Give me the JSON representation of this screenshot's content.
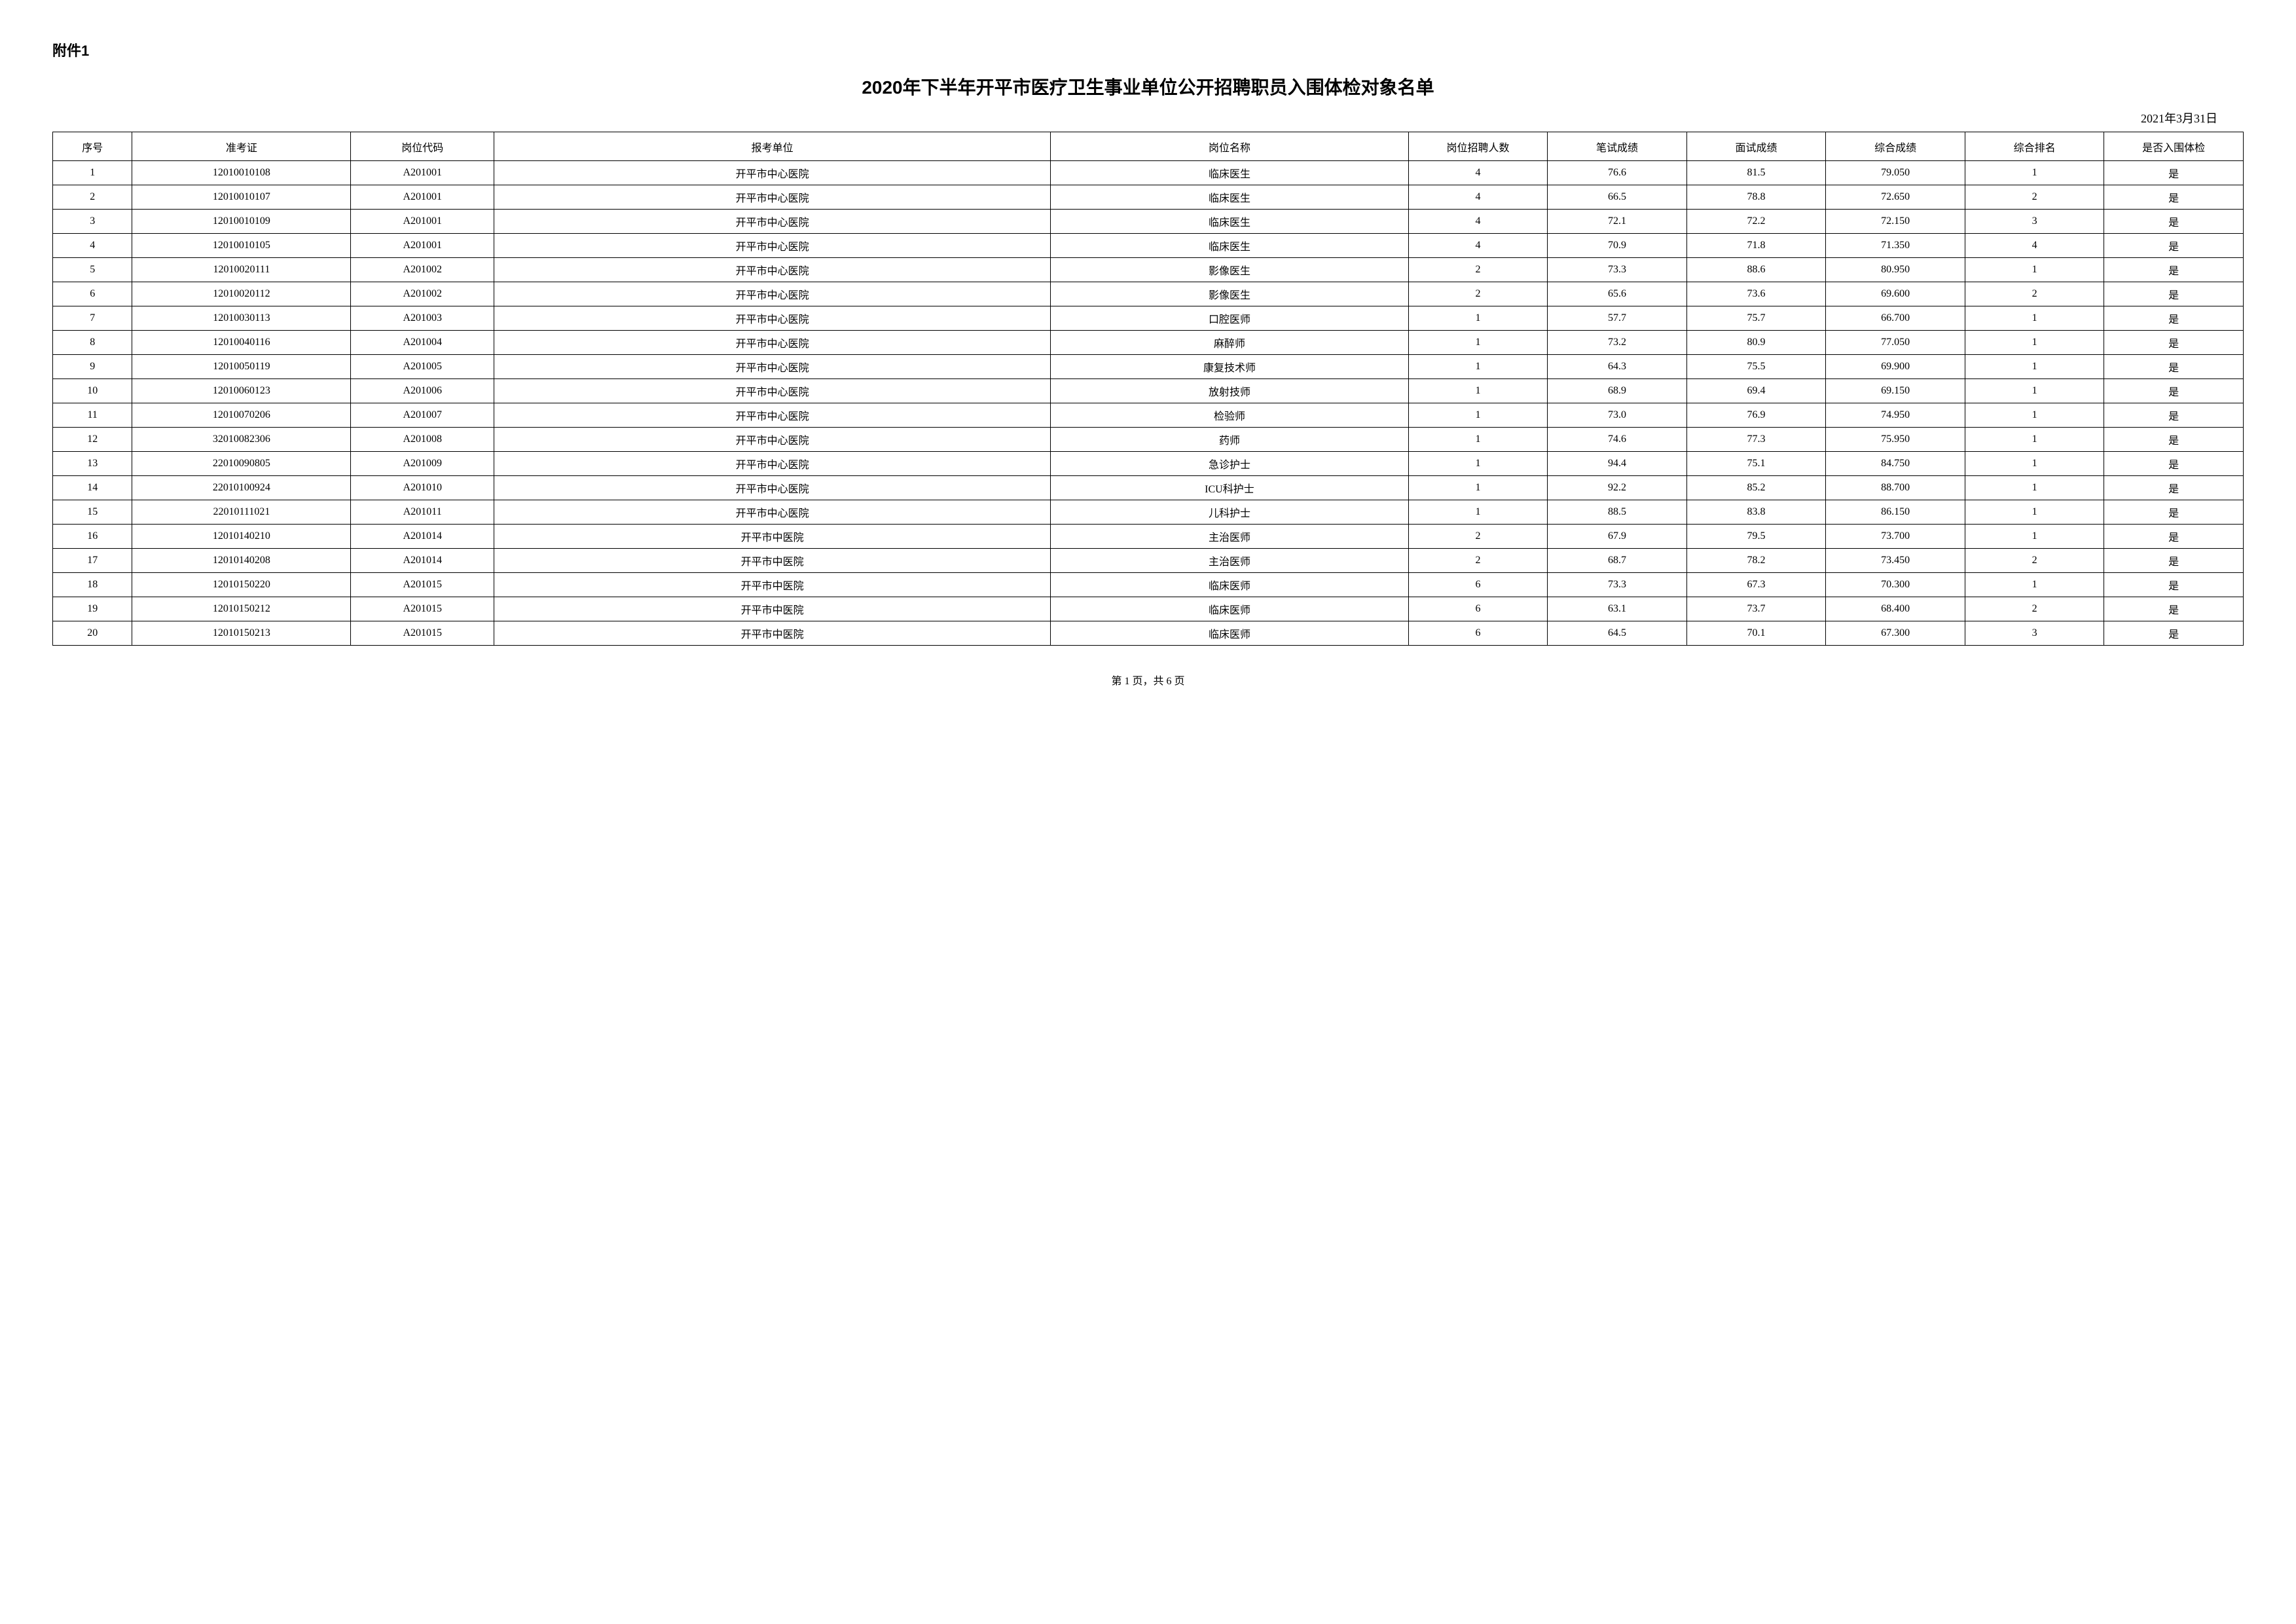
{
  "attachment": "附件1",
  "title": "2020年下半年开平市医疗卫生事业单位公开招聘职员入围体检对象名单",
  "date": "2021年3月31日",
  "footer": "第 1 页，共 6 页",
  "columns": [
    "序号",
    "准考证",
    "岗位代码",
    "报考单位",
    "岗位名称",
    "岗位招聘人数",
    "笔试成绩",
    "面试成绩",
    "综合成绩",
    "综合排名",
    "是否入围体检"
  ],
  "rows": [
    [
      "1",
      "12010010108",
      "A201001",
      "开平市中心医院",
      "临床医生",
      "4",
      "76.6",
      "81.5",
      "79.050",
      "1",
      "是"
    ],
    [
      "2",
      "12010010107",
      "A201001",
      "开平市中心医院",
      "临床医生",
      "4",
      "66.5",
      "78.8",
      "72.650",
      "2",
      "是"
    ],
    [
      "3",
      "12010010109",
      "A201001",
      "开平市中心医院",
      "临床医生",
      "4",
      "72.1",
      "72.2",
      "72.150",
      "3",
      "是"
    ],
    [
      "4",
      "12010010105",
      "A201001",
      "开平市中心医院",
      "临床医生",
      "4",
      "70.9",
      "71.8",
      "71.350",
      "4",
      "是"
    ],
    [
      "5",
      "12010020111",
      "A201002",
      "开平市中心医院",
      "影像医生",
      "2",
      "73.3",
      "88.6",
      "80.950",
      "1",
      "是"
    ],
    [
      "6",
      "12010020112",
      "A201002",
      "开平市中心医院",
      "影像医生",
      "2",
      "65.6",
      "73.6",
      "69.600",
      "2",
      "是"
    ],
    [
      "7",
      "12010030113",
      "A201003",
      "开平市中心医院",
      "口腔医师",
      "1",
      "57.7",
      "75.7",
      "66.700",
      "1",
      "是"
    ],
    [
      "8",
      "12010040116",
      "A201004",
      "开平市中心医院",
      "麻醉师",
      "1",
      "73.2",
      "80.9",
      "77.050",
      "1",
      "是"
    ],
    [
      "9",
      "12010050119",
      "A201005",
      "开平市中心医院",
      "康复技术师",
      "1",
      "64.3",
      "75.5",
      "69.900",
      "1",
      "是"
    ],
    [
      "10",
      "12010060123",
      "A201006",
      "开平市中心医院",
      "放射技师",
      "1",
      "68.9",
      "69.4",
      "69.150",
      "1",
      "是"
    ],
    [
      "11",
      "12010070206",
      "A201007",
      "开平市中心医院",
      "检验师",
      "1",
      "73.0",
      "76.9",
      "74.950",
      "1",
      "是"
    ],
    [
      "12",
      "32010082306",
      "A201008",
      "开平市中心医院",
      "药师",
      "1",
      "74.6",
      "77.3",
      "75.950",
      "1",
      "是"
    ],
    [
      "13",
      "22010090805",
      "A201009",
      "开平市中心医院",
      "急诊护士",
      "1",
      "94.4",
      "75.1",
      "84.750",
      "1",
      "是"
    ],
    [
      "14",
      "22010100924",
      "A201010",
      "开平市中心医院",
      "ICU科护士",
      "1",
      "92.2",
      "85.2",
      "88.700",
      "1",
      "是"
    ],
    [
      "15",
      "22010111021",
      "A201011",
      "开平市中心医院",
      "儿科护士",
      "1",
      "88.5",
      "83.8",
      "86.150",
      "1",
      "是"
    ],
    [
      "16",
      "12010140210",
      "A201014",
      "开平市中医院",
      "主治医师",
      "2",
      "67.9",
      "79.5",
      "73.700",
      "1",
      "是"
    ],
    [
      "17",
      "12010140208",
      "A201014",
      "开平市中医院",
      "主治医师",
      "2",
      "68.7",
      "78.2",
      "73.450",
      "2",
      "是"
    ],
    [
      "18",
      "12010150220",
      "A201015",
      "开平市中医院",
      "临床医师",
      "6",
      "73.3",
      "67.3",
      "70.300",
      "1",
      "是"
    ],
    [
      "19",
      "12010150212",
      "A201015",
      "开平市中医院",
      "临床医师",
      "6",
      "63.1",
      "73.7",
      "68.400",
      "2",
      "是"
    ],
    [
      "20",
      "12010150213",
      "A201015",
      "开平市中医院",
      "临床医师",
      "6",
      "64.5",
      "70.1",
      "67.300",
      "3",
      "是"
    ]
  ]
}
